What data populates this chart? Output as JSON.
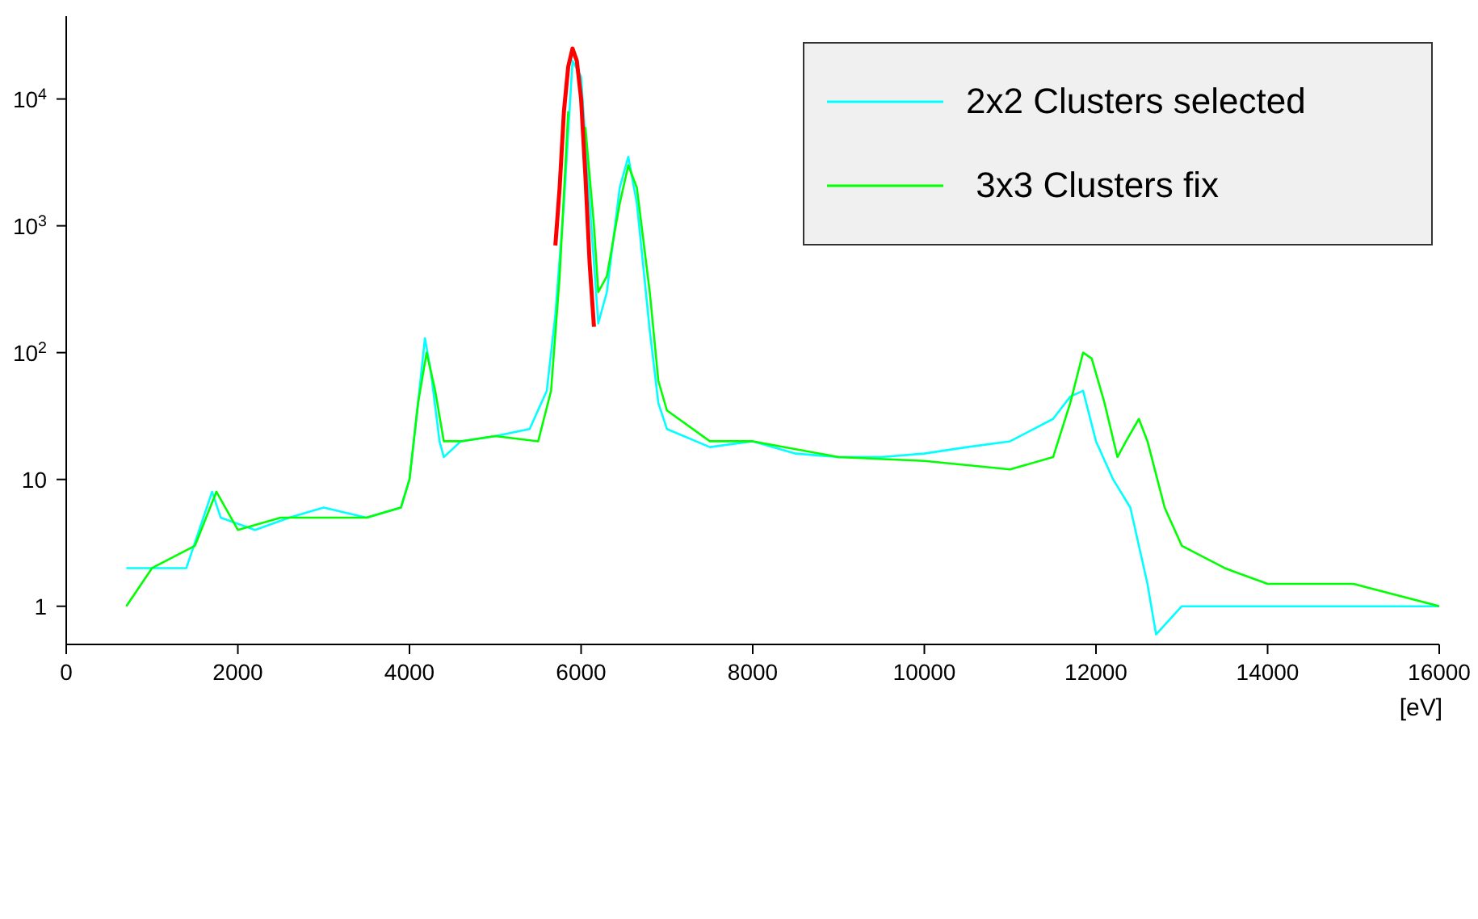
{
  "chart_data": {
    "type": "line",
    "xlabel": "[eV]",
    "xlim": [
      0,
      16000
    ],
    "xticks": [
      0,
      2000,
      4000,
      6000,
      8000,
      10000,
      12000,
      14000,
      16000
    ],
    "ylim": [
      0.5,
      45000
    ],
    "log": "y",
    "yticks": [
      1,
      10,
      {
        "value": 100,
        "label": "10$^{2}$"
      },
      {
        "value": 1000,
        "label": "10$^{3}$"
      },
      {
        "value": 10000,
        "label": "10$^{4}$"
      }
    ],
    "grid": false,
    "legend": "top right",
    "marker": "none",
    "line_style": "solid",
    "series": [
      {
        "name": "2x2 Clusters selected",
        "color": "#00ffff",
        "x": [
          700,
          1000,
          1400,
          1700,
          1800,
          2200,
          2600,
          3000,
          3500,
          3900,
          4000,
          4100,
          4180,
          4250,
          4350,
          4400,
          4600,
          5000,
          5400,
          5600,
          5700,
          5800,
          5900,
          6000,
          6100,
          6200,
          6300,
          6450,
          6550,
          6650,
          6800,
          6900,
          7000,
          7500,
          8000,
          8500,
          9000,
          9500,
          10000,
          10500,
          11000,
          11500,
          11700,
          11850,
          12000,
          12200,
          12400,
          12600,
          12700,
          13000,
          16000
        ],
        "values": [
          2,
          2,
          2,
          8,
          5,
          4,
          5,
          6,
          5,
          6,
          10,
          40,
          130,
          70,
          20,
          15,
          20,
          22,
          25,
          50,
          200,
          1500,
          20000,
          15000,
          1500,
          170,
          300,
          2000,
          3500,
          1500,
          150,
          40,
          25,
          18,
          20,
          16,
          15,
          15,
          16,
          18,
          20,
          30,
          45,
          50,
          20,
          10,
          6,
          1.5,
          0.6,
          1,
          1
        ]
      },
      {
        "name": " 3x3 Clusters fix",
        "color": "#00ff00",
        "x": [
          700,
          1000,
          1500,
          1750,
          2000,
          2500,
          3000,
          3500,
          3900,
          4000,
          4100,
          4200,
          4300,
          4400,
          4600,
          5000,
          5500,
          5650,
          5750,
          5850,
          5950,
          6050,
          6150,
          6200,
          6300,
          6450,
          6550,
          6650,
          6800,
          6900,
          7000,
          7500,
          8000,
          9000,
          10000,
          11000,
          11500,
          11700,
          11850,
          11950,
          12100,
          12250,
          12350,
          12500,
          12600,
          12800,
          13000,
          13500,
          14000,
          15000,
          16000
        ],
        "values": [
          1,
          2,
          3,
          8,
          4,
          5,
          5,
          5,
          6,
          10,
          40,
          100,
          50,
          20,
          20,
          22,
          20,
          50,
          400,
          8000,
          null,
          6000,
          1000,
          300,
          400,
          1500,
          3000,
          2000,
          300,
          60,
          35,
          20,
          20,
          15,
          14,
          12,
          15,
          40,
          100,
          90,
          40,
          15,
          20,
          30,
          20,
          6,
          3,
          2,
          1.5,
          1.5,
          1
        ]
      },
      {
        "color": "#ff0000",
        "x": [
          5700,
          5750,
          5800,
          5850,
          5900,
          5950,
          6000,
          6050,
          6100,
          6150
        ],
        "values": [
          700,
          2000,
          8000,
          18000,
          25000,
          20000,
          10000,
          2500,
          500,
          160
        ]
      }
    ]
  }
}
